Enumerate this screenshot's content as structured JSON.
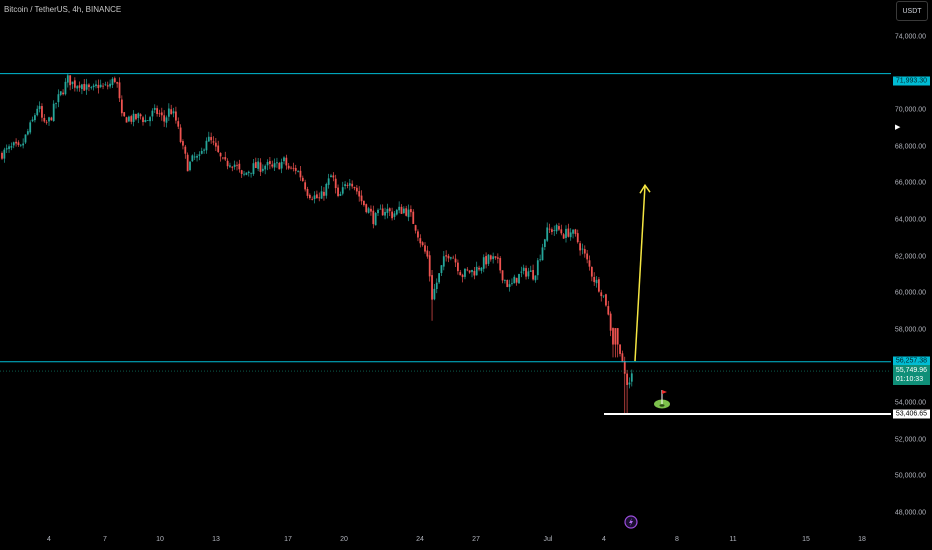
{
  "header": {
    "title": "Bitcoin / TetherUS, 4h, BINANCE",
    "currency_badge": "USDT"
  },
  "y_axis": {
    "labels": [
      "74,000.00",
      "70,000.00",
      "68,000.00",
      "66,000.00",
      "64,000.00",
      "62,000.00",
      "60,000.00",
      "58,000.00",
      "54,000.00",
      "52,000.00",
      "50,000.00",
      "48,000.00"
    ]
  },
  "x_axis": {
    "labels": [
      "4",
      "7",
      "10",
      "13",
      "17",
      "20",
      "24",
      "27",
      "Jul",
      "4",
      "8",
      "11",
      "15",
      "18"
    ]
  },
  "price_tags": {
    "upper_line": "71,993.30",
    "middle_line": "56,257.38",
    "current_price": "55,749.96",
    "countdown": "01:10:33",
    "lower_line": "53,406.65"
  },
  "colors": {
    "up": "#26a69a",
    "down": "#ef5350",
    "hline": "#00bcd4",
    "arrow": "#f5e642",
    "support": "#ffffff",
    "badge_green": "#0f8f78"
  },
  "icons": {
    "flag": "flag-icon",
    "lightning": "lightning-icon",
    "dropdown": "triangle-right-icon"
  },
  "chart_data": {
    "type": "candlestick",
    "symbol": "BTCUSDT",
    "timeframe": "4h",
    "ylim": [
      47000,
      75500
    ],
    "x_ticks": [
      "4",
      "7",
      "10",
      "13",
      "17",
      "20",
      "24",
      "27",
      "Jul",
      "4",
      "8",
      "11",
      "15",
      "18"
    ],
    "horizontal_lines": [
      71993.3,
      56257.38,
      53406.65
    ],
    "current_price": 55749.96,
    "projection": {
      "from": 56300,
      "to": 65900
    },
    "path": [
      [
        0,
        67600
      ],
      [
        8,
        67800
      ],
      [
        14,
        68000
      ],
      [
        20,
        67800
      ],
      [
        26,
        68600
      ],
      [
        32,
        69300
      ],
      [
        38,
        70300
      ],
      [
        44,
        69100
      ],
      [
        50,
        69500
      ],
      [
        56,
        70400
      ],
      [
        62,
        71000
      ],
      [
        68,
        71700
      ],
      [
        74,
        71400
      ],
      [
        80,
        71500
      ],
      [
        86,
        71200
      ],
      [
        92,
        71000
      ],
      [
        98,
        71400
      ],
      [
        104,
        71200
      ],
      [
        110,
        71400
      ],
      [
        116,
        71800
      ],
      [
        122,
        69500
      ],
      [
        128,
        69600
      ],
      [
        134,
        69500
      ],
      [
        140,
        69700
      ],
      [
        146,
        69400
      ],
      [
        152,
        69800
      ],
      [
        158,
        69900
      ],
      [
        164,
        69400
      ],
      [
        170,
        70100
      ],
      [
        176,
        69400
      ],
      [
        182,
        68000
      ],
      [
        188,
        66900
      ],
      [
        194,
        67400
      ],
      [
        200,
        67300
      ],
      [
        206,
        68500
      ],
      [
        212,
        68200
      ],
      [
        218,
        67600
      ],
      [
        224,
        67000
      ],
      [
        230,
        67200
      ],
      [
        236,
        67000
      ],
      [
        242,
        66300
      ],
      [
        248,
        66700
      ],
      [
        254,
        66900
      ],
      [
        260,
        66900
      ],
      [
        266,
        67000
      ],
      [
        272,
        66800
      ],
      [
        278,
        67000
      ],
      [
        284,
        67200
      ],
      [
        290,
        66700
      ],
      [
        296,
        66800
      ],
      [
        302,
        66300
      ],
      [
        308,
        65500
      ],
      [
        314,
        65300
      ],
      [
        320,
        65100
      ],
      [
        326,
        65800
      ],
      [
        332,
        66500
      ],
      [
        338,
        65100
      ],
      [
        344,
        65700
      ],
      [
        350,
        66300
      ],
      [
        356,
        65700
      ],
      [
        362,
        65000
      ],
      [
        368,
        64600
      ],
      [
        374,
        64000
      ],
      [
        380,
        64400
      ],
      [
        386,
        64600
      ],
      [
        392,
        64300
      ],
      [
        398,
        64500
      ],
      [
        404,
        64600
      ],
      [
        410,
        64300
      ],
      [
        416,
        63600
      ],
      [
        422,
        62600
      ],
      [
        428,
        61900
      ],
      [
        432,
        59800
      ],
      [
        438,
        60800
      ],
      [
        444,
        61800
      ],
      [
        450,
        62300
      ],
      [
        456,
        61700
      ],
      [
        462,
        61000
      ],
      [
        468,
        61200
      ],
      [
        474,
        61200
      ],
      [
        480,
        61500
      ],
      [
        486,
        61800
      ],
      [
        492,
        61900
      ],
      [
        498,
        61600
      ],
      [
        504,
        60800
      ],
      [
        510,
        60300
      ],
      [
        516,
        60800
      ],
      [
        522,
        61100
      ],
      [
        528,
        61200
      ],
      [
        534,
        61000
      ],
      [
        540,
        62100
      ],
      [
        546,
        63300
      ],
      [
        552,
        63500
      ],
      [
        558,
        63500
      ],
      [
        564,
        63200
      ],
      [
        570,
        63400
      ],
      [
        576,
        63000
      ],
      [
        582,
        62400
      ],
      [
        588,
        61600
      ],
      [
        594,
        60800
      ],
      [
        600,
        60300
      ],
      [
        606,
        59500
      ],
      [
        610,
        58200
      ],
      [
        614,
        57700
      ],
      [
        618,
        57500
      ],
      [
        622,
        56500
      ],
      [
        626,
        54800
      ],
      [
        630,
        55300
      ],
      [
        634,
        55700
      ]
    ]
  }
}
